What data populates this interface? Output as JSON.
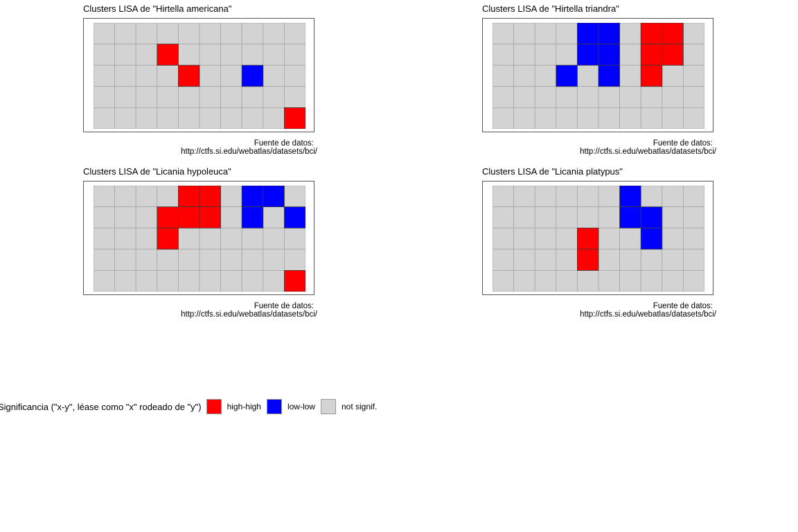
{
  "colors": {
    "high-high": "#ff0000",
    "low-low": "#0000ff",
    "not signif.": "#d3d3d3"
  },
  "chart_data": [
    {
      "type": "heatmap",
      "title": "Clusters LISA de \"Hirtella americana\"",
      "caption": [
        "Fuente de datos:",
        "http://ctfs.si.edu/webatlas/datasets/bci/"
      ],
      "cols": 10,
      "rows": 5,
      "cells": [
        [
          "ns",
          "ns",
          "ns",
          "ns",
          "ns",
          "ns",
          "ns",
          "ns",
          "ns",
          "ns"
        ],
        [
          "ns",
          "ns",
          "ns",
          "hh",
          "ns",
          "ns",
          "ns",
          "ns",
          "ns",
          "ns"
        ],
        [
          "ns",
          "ns",
          "ns",
          "ns",
          "hh",
          "ns",
          "ns",
          "ll",
          "ns",
          "ns"
        ],
        [
          "ns",
          "ns",
          "ns",
          "ns",
          "ns",
          "ns",
          "ns",
          "ns",
          "ns",
          "ns"
        ],
        [
          "ns",
          "ns",
          "ns",
          "ns",
          "ns",
          "ns",
          "ns",
          "ns",
          "ns",
          "hh"
        ]
      ]
    },
    {
      "type": "heatmap",
      "title": "Clusters LISA de \"Hirtella triandra\"",
      "caption": [
        "Fuente de datos:",
        "http://ctfs.si.edu/webatlas/datasets/bci/"
      ],
      "cols": 10,
      "rows": 5,
      "cells": [
        [
          "ns",
          "ns",
          "ns",
          "ns",
          "ll",
          "ll",
          "ns",
          "hh",
          "hh",
          "ns"
        ],
        [
          "ns",
          "ns",
          "ns",
          "ns",
          "ll",
          "ll",
          "ns",
          "hh",
          "hh",
          "ns"
        ],
        [
          "ns",
          "ns",
          "ns",
          "ll",
          "ns",
          "ll",
          "ns",
          "hh",
          "ns",
          "ns"
        ],
        [
          "ns",
          "ns",
          "ns",
          "ns",
          "ns",
          "ns",
          "ns",
          "ns",
          "ns",
          "ns"
        ],
        [
          "ns",
          "ns",
          "ns",
          "ns",
          "ns",
          "ns",
          "ns",
          "ns",
          "ns",
          "ns"
        ]
      ]
    },
    {
      "type": "heatmap",
      "title": "Clusters LISA de \"Licania hypoleuca\"",
      "caption": [
        "Fuente de datos:",
        "http://ctfs.si.edu/webatlas/datasets/bci/"
      ],
      "cols": 10,
      "rows": 5,
      "cells": [
        [
          "ns",
          "ns",
          "ns",
          "ns",
          "hh",
          "hh",
          "ns",
          "ll",
          "ll",
          "ns"
        ],
        [
          "ns",
          "ns",
          "ns",
          "hh",
          "hh",
          "hh",
          "ns",
          "ll",
          "ns",
          "ll"
        ],
        [
          "ns",
          "ns",
          "ns",
          "hh",
          "ns",
          "ns",
          "ns",
          "ns",
          "ns",
          "ns"
        ],
        [
          "ns",
          "ns",
          "ns",
          "ns",
          "ns",
          "ns",
          "ns",
          "ns",
          "ns",
          "ns"
        ],
        [
          "ns",
          "ns",
          "ns",
          "ns",
          "ns",
          "ns",
          "ns",
          "ns",
          "ns",
          "hh"
        ]
      ]
    },
    {
      "type": "heatmap",
      "title": "Clusters LISA de \"Licania platypus\"",
      "caption": [
        "Fuente de datos:",
        "http://ctfs.si.edu/webatlas/datasets/bci/"
      ],
      "cols": 10,
      "rows": 5,
      "cells": [
        [
          "ns",
          "ns",
          "ns",
          "ns",
          "ns",
          "ns",
          "ll",
          "ns",
          "ns",
          "ns"
        ],
        [
          "ns",
          "ns",
          "ns",
          "ns",
          "ns",
          "ns",
          "ll",
          "ll",
          "ns",
          "ns"
        ],
        [
          "ns",
          "ns",
          "ns",
          "ns",
          "hh",
          "ns",
          "ns",
          "ll",
          "ns",
          "ns"
        ],
        [
          "ns",
          "ns",
          "ns",
          "ns",
          "hh",
          "ns",
          "ns",
          "ns",
          "ns",
          "ns"
        ],
        [
          "ns",
          "ns",
          "ns",
          "ns",
          "ns",
          "ns",
          "ns",
          "ns",
          "ns",
          "ns"
        ]
      ]
    }
  ],
  "legend": {
    "title": "Significancia (\"x-y\", léase como \"x\" rodeado de \"y\")",
    "items": [
      {
        "code": "hh",
        "label": "high-high",
        "color": "#ff0000"
      },
      {
        "code": "ll",
        "label": "low-low",
        "color": "#0000ff"
      },
      {
        "code": "ns",
        "label": "not signif.",
        "color": "#d3d3d3"
      }
    ]
  }
}
